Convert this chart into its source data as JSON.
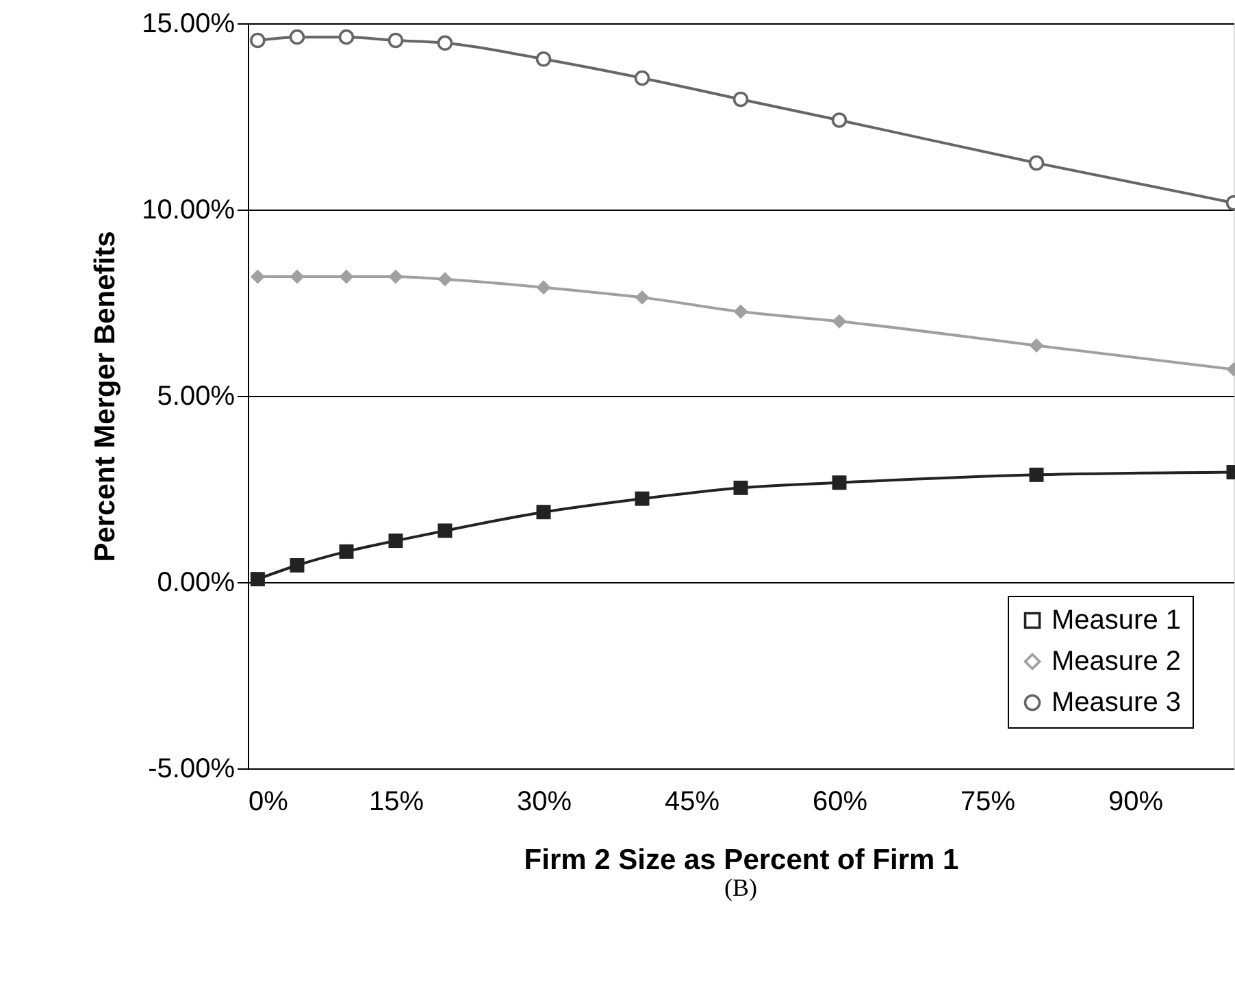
{
  "chart_data": {
    "type": "line",
    "xlabel": "Firm 2 Size as Percent of Firm 1",
    "ylabel": "Percent Merger Benefits",
    "x": [
      1,
      5,
      10,
      15,
      20,
      30,
      40,
      50,
      60,
      80,
      100
    ],
    "series": [
      {
        "name": "Measure 1",
        "color": "#222222",
        "marker": "square",
        "values": [
          0.08,
          0.45,
          0.82,
          1.11,
          1.38,
          1.88,
          2.24,
          2.53,
          2.67,
          2.88,
          2.95
        ]
      },
      {
        "name": "Measure 2",
        "color": "#a0a0a0",
        "marker": "diamond",
        "values": [
          8.2,
          8.2,
          8.2,
          8.2,
          8.13,
          7.91,
          7.64,
          7.26,
          7.0,
          6.35,
          5.71
        ]
      },
      {
        "name": "Measure 3",
        "color": "#666666",
        "marker": "circle",
        "values": [
          14.54,
          14.63,
          14.63,
          14.54,
          14.47,
          14.04,
          13.53,
          12.96,
          12.4,
          11.25,
          10.18
        ]
      }
    ],
    "xlim": [
      0,
      100
    ],
    "xticks": [
      {
        "value": 0,
        "label": "0%"
      },
      {
        "value": 15,
        "label": "15%"
      },
      {
        "value": 30,
        "label": "30%"
      },
      {
        "value": 45,
        "label": "45%"
      },
      {
        "value": 60,
        "label": "60%"
      },
      {
        "value": 75,
        "label": "75%"
      },
      {
        "value": 90,
        "label": "90%"
      }
    ],
    "ylim": [
      -5,
      15
    ],
    "yticks": [
      {
        "value": -5,
        "label": "-5.00%"
      },
      {
        "value": 0,
        "label": "0.00%"
      },
      {
        "value": 5,
        "label": "5.00%"
      },
      {
        "value": 10,
        "label": "10.00%"
      },
      {
        "value": 15,
        "label": "15.00%"
      }
    ],
    "grid": "y",
    "legend": "bottom right",
    "line_style": "solid",
    "annotations": [
      "(B)"
    ]
  }
}
